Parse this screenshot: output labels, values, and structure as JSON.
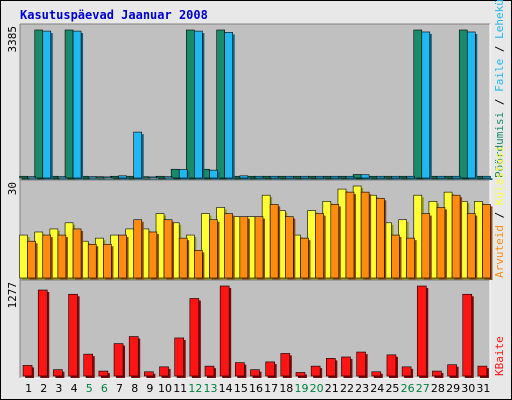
{
  "title": "Kasutuspäevad Jaanuar 2008",
  "colors": {
    "title": "#0000cc",
    "background": "#e8e8e8",
    "plot_bg": "#c0c0c0",
    "hits": "#1fb8f0",
    "hits_shade": "#0c5f7d",
    "files": "#1a8a6a",
    "files_shade": "#0d4536",
    "pages": "#ffff33",
    "pages_shade": "#9a9a10",
    "visits": "#ff8c10",
    "visits_shade": "#8a4a08",
    "kbytes": "#ff1414",
    "kbytes_shade": "#800a0a",
    "weekend_tick": "#008040",
    "weekday_tick": "#000000"
  },
  "legend_top": [
    {
      "text": "Pöördumisi",
      "color": "#1a8a6a"
    },
    {
      "text": " / ",
      "color": "#000000"
    },
    {
      "text": "Faile",
      "color": "#1fb8f0"
    },
    {
      "text": " / ",
      "color": "#000000"
    },
    {
      "text": "Lehekülgi",
      "color": "#1fb8f0"
    }
  ],
  "legend_mid": [
    {
      "text": "Arvuteid",
      "color": "#ff8c10"
    },
    {
      "text": " / ",
      "color": "#000000"
    },
    {
      "text": "Külastusi",
      "color": "#ffff33"
    }
  ],
  "legend_bottom": [
    {
      "text": "KBaite",
      "color": "#ff1414"
    }
  ],
  "chart_data": [
    {
      "type": "bar",
      "panel": "top",
      "ymax_label": "3385",
      "ylim": [
        0,
        3385
      ],
      "categories": [
        "1",
        "2",
        "3",
        "4",
        "5",
        "6",
        "7",
        "8",
        "9",
        "10",
        "11",
        "12",
        "13",
        "14",
        "15",
        "16",
        "17",
        "18",
        "19",
        "20",
        "21",
        "22",
        "23",
        "24",
        "25",
        "26",
        "27",
        "28",
        "29",
        "30",
        "31"
      ],
      "series": [
        {
          "name": "Pöördumisi",
          "values": [
            40,
            3385,
            40,
            3385,
            40,
            30,
            40,
            40,
            30,
            40,
            200,
            3385,
            200,
            3385,
            40,
            40,
            40,
            40,
            40,
            40,
            40,
            40,
            80,
            40,
            40,
            40,
            3385,
            40,
            40,
            3385,
            40
          ]
        },
        {
          "name": "Faile",
          "values": [
            30,
            3360,
            30,
            3360,
            30,
            25,
            50,
            1050,
            25,
            30,
            195,
            3360,
            180,
            3330,
            50,
            40,
            40,
            40,
            40,
            40,
            40,
            40,
            75,
            40,
            40,
            40,
            3340,
            40,
            40,
            3340,
            40
          ]
        }
      ]
    },
    {
      "type": "bar",
      "panel": "middle",
      "ymax_label": "30",
      "ylim": [
        0,
        30
      ],
      "categories": [
        "1",
        "2",
        "3",
        "4",
        "5",
        "6",
        "7",
        "8",
        "9",
        "10",
        "11",
        "12",
        "13",
        "14",
        "15",
        "16",
        "17",
        "18",
        "19",
        "20",
        "21",
        "22",
        "23",
        "24",
        "25",
        "26",
        "27",
        "28",
        "29",
        "30",
        "31"
      ],
      "series": [
        {
          "name": "Külastusi",
          "values": [
            14,
            15,
            16,
            18,
            12,
            13,
            14,
            16,
            16,
            21,
            18,
            14,
            21,
            23,
            20,
            20,
            27,
            22,
            14,
            22,
            25,
            29,
            30,
            27,
            18,
            19,
            27,
            25,
            28,
            25,
            25
          ]
        },
        {
          "name": "Arvuteid",
          "values": [
            12,
            14,
            14,
            16,
            11,
            11,
            14,
            19,
            15,
            19,
            13,
            9,
            19,
            21,
            20,
            20,
            24,
            20,
            13,
            21,
            24,
            28,
            28,
            26,
            14,
            13,
            21,
            23,
            27,
            21,
            24
          ]
        }
      ]
    },
    {
      "type": "bar",
      "panel": "bottom",
      "ymax_label": "1277",
      "ylim": [
        0,
        1277
      ],
      "categories": [
        "1",
        "2",
        "3",
        "4",
        "5",
        "6",
        "7",
        "8",
        "9",
        "10",
        "11",
        "12",
        "13",
        "14",
        "15",
        "16",
        "17",
        "18",
        "19",
        "20",
        "21",
        "22",
        "23",
        "24",
        "25",
        "26",
        "27",
        "28",
        "29",
        "30",
        "31"
      ],
      "series": [
        {
          "name": "KBaite",
          "values": [
            150,
            1220,
            90,
            1160,
            310,
            70,
            460,
            560,
            60,
            130,
            540,
            1100,
            140,
            1277,
            190,
            90,
            200,
            320,
            50,
            140,
            250,
            270,
            340,
            60,
            300,
            130,
            1277,
            70,
            160,
            1160,
            140
          ]
        }
      ]
    }
  ],
  "weekend_days": [
    5,
    6,
    12,
    13,
    19,
    20,
    26,
    27
  ]
}
